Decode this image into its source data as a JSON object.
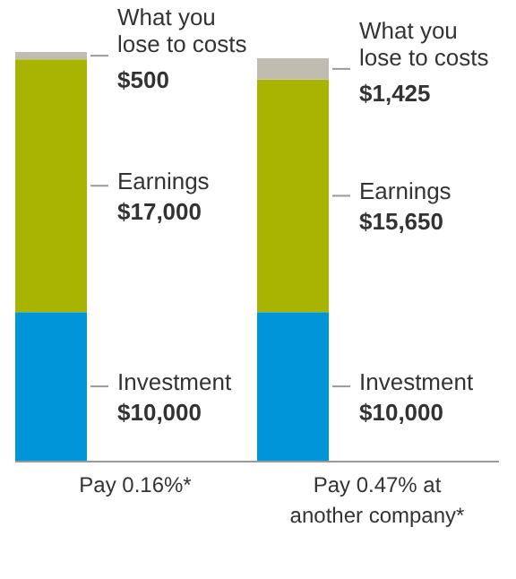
{
  "chart_data": {
    "type": "bar",
    "stacked": true,
    "categories": [
      "Pay 0.16%*",
      "Pay 0.47% at another company*"
    ],
    "series": [
      {
        "name": "Investment",
        "color": "#0095d9",
        "values": [
          10000,
          10000
        ],
        "value_labels": [
          "$10,000",
          "$10,000"
        ]
      },
      {
        "name": "Earnings",
        "color": "#a8b400",
        "values": [
          17000,
          15650
        ],
        "value_labels": [
          "$17,000",
          "$15,650"
        ]
      },
      {
        "name": "What you lose to costs",
        "color": "#c2bcb0",
        "values": [
          500,
          1425
        ],
        "value_labels": [
          "$500",
          "$1,425"
        ]
      }
    ],
    "grid": false
  }
}
